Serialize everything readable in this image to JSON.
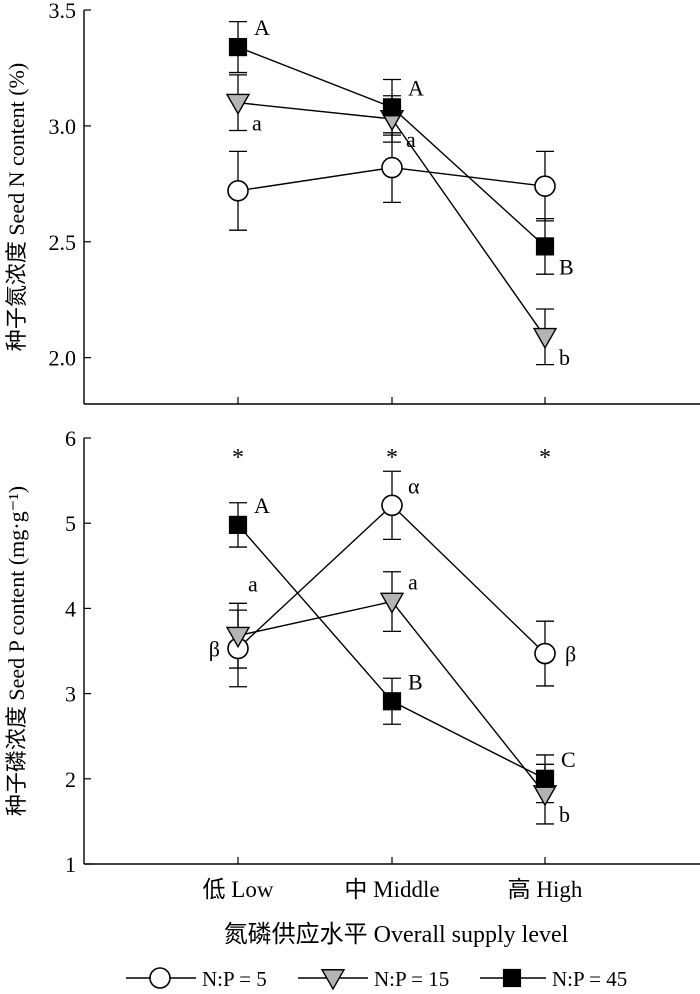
{
  "chart_data": [
    {
      "type": "line",
      "panel": "top",
      "ylabel": "种子氮浓度 Seed N content (%)",
      "ylim": [
        1.8,
        3.5
      ],
      "yticks": [
        "2.0",
        "2.5",
        "3.0",
        "3.5"
      ],
      "ytick_values": [
        2.0,
        2.5,
        3.0,
        3.5
      ],
      "categories": [
        "低 Low",
        "中 Middle",
        "高 High"
      ],
      "series": [
        {
          "name": "N:P = 5",
          "marker": "circle",
          "fill": "#ffffff",
          "values": [
            2.72,
            2.82,
            2.74
          ],
          "err": [
            0.17,
            0.15,
            0.15
          ]
        },
        {
          "name": "N:P = 15",
          "marker": "triangle",
          "fill": "#b4b4b4",
          "values": [
            3.1,
            3.03,
            2.09
          ],
          "err": [
            0.12,
            0.1,
            0.12
          ]
        },
        {
          "name": "N:P = 45",
          "marker": "square",
          "fill": "#000000",
          "values": [
            3.34,
            3.08,
            2.48
          ],
          "err": [
            0.11,
            0.12,
            0.12
          ]
        }
      ],
      "annotations": [
        {
          "text": "A",
          "series": 2,
          "index": 0,
          "position": "right-above"
        },
        {
          "text": "a",
          "series": 1,
          "index": 0,
          "position": "right-below"
        },
        {
          "text": "A",
          "series": 2,
          "index": 1,
          "position": "right-above"
        },
        {
          "text": "a",
          "series": 1,
          "index": 1,
          "position": "right-below"
        },
        {
          "text": "B",
          "series": 2,
          "index": 2,
          "position": "right-below"
        },
        {
          "text": "b",
          "series": 1,
          "index": 2,
          "position": "right-below"
        }
      ]
    },
    {
      "type": "line",
      "panel": "bottom",
      "ylabel": "种子磷浓度 Seed P content (mg·g⁻¹)",
      "ylim": [
        1,
        6
      ],
      "yticks": [
        "1",
        "2",
        "3",
        "4",
        "5",
        "6"
      ],
      "ytick_values": [
        1,
        2,
        3,
        4,
        5,
        6
      ],
      "categories": [
        "低 Low",
        "中 Middle",
        "高 High"
      ],
      "series": [
        {
          "name": "N:P = 5",
          "marker": "circle",
          "fill": "#ffffff",
          "values": [
            3.53,
            5.21,
            3.47
          ],
          "err": [
            0.45,
            0.4,
            0.38
          ]
        },
        {
          "name": "N:P = 15",
          "marker": "triangle",
          "fill": "#b4b4b4",
          "values": [
            3.68,
            4.08,
            1.82
          ],
          "err": [
            0.38,
            0.35,
            0.35
          ]
        },
        {
          "name": "N:P = 45",
          "marker": "square",
          "fill": "#000000",
          "values": [
            4.98,
            2.91,
            2.0
          ],
          "err": [
            0.26,
            0.27,
            0.28
          ]
        }
      ],
      "annotations": [
        {
          "text": "A",
          "series": 2,
          "index": 0,
          "position": "right-above"
        },
        {
          "text": "a",
          "series": 1,
          "index": 0,
          "position": "right-above-far"
        },
        {
          "text": "β",
          "series": 0,
          "index": 0,
          "position": "left"
        },
        {
          "text": "α",
          "series": 0,
          "index": 1,
          "position": "right-above"
        },
        {
          "text": "a",
          "series": 1,
          "index": 1,
          "position": "right-above"
        },
        {
          "text": "B",
          "series": 2,
          "index": 1,
          "position": "right-above"
        },
        {
          "text": "β",
          "series": 0,
          "index": 2,
          "position": "right"
        },
        {
          "text": "C",
          "series": 2,
          "index": 2,
          "position": "right-above"
        },
        {
          "text": "b",
          "series": 1,
          "index": 2,
          "position": "right-below"
        }
      ],
      "significance": [
        "*",
        "*",
        "*"
      ]
    }
  ],
  "xlabel": "氮磷供应水平 Overall supply level",
  "legend": [
    "N:P = 5",
    "N:P = 15",
    "N:P = 45"
  ]
}
